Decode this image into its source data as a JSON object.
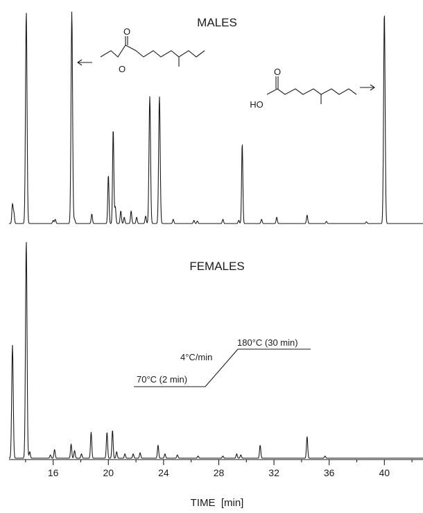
{
  "chart_data": [
    {
      "type": "line",
      "title": "MALES",
      "xlabel": "TIME  [min]",
      "x_unit": "min",
      "xlim": [
        12.8,
        42.8
      ],
      "baseline_y": 0,
      "y_unit": "relative detector response",
      "peaks": [
        {
          "t": 13.05,
          "h": 0.09
        },
        {
          "t": 13.15,
          "h": 0.05
        },
        {
          "t": 14.05,
          "h": 1.0
        },
        {
          "t": 16.0,
          "h": 0.015
        },
        {
          "t": 16.15,
          "h": 0.02
        },
        {
          "t": 17.35,
          "h": 1.0
        },
        {
          "t": 17.55,
          "h": 0.02
        },
        {
          "t": 18.8,
          "h": 0.045
        },
        {
          "t": 20.0,
          "h": 0.23
        },
        {
          "t": 20.35,
          "h": 0.45
        },
        {
          "t": 20.5,
          "h": 0.08
        },
        {
          "t": 20.9,
          "h": 0.06
        },
        {
          "t": 21.15,
          "h": 0.03
        },
        {
          "t": 21.65,
          "h": 0.06
        },
        {
          "t": 22.05,
          "h": 0.03
        },
        {
          "t": 22.7,
          "h": 0.035
        },
        {
          "t": 23.0,
          "h": 0.6
        },
        {
          "t": 23.7,
          "h": 0.6
        },
        {
          "t": 24.7,
          "h": 0.02
        },
        {
          "t": 26.2,
          "h": 0.015
        },
        {
          "t": 26.45,
          "h": 0.012
        },
        {
          "t": 28.3,
          "h": 0.02
        },
        {
          "t": 29.45,
          "h": 0.015
        },
        {
          "t": 29.7,
          "h": 0.38
        },
        {
          "t": 31.1,
          "h": 0.02
        },
        {
          "t": 32.2,
          "h": 0.03
        },
        {
          "t": 34.4,
          "h": 0.04
        },
        {
          "t": 35.8,
          "h": 0.01
        },
        {
          "t": 38.7,
          "h": 0.008
        },
        {
          "t": 40.0,
          "h": 1.0
        }
      ],
      "annotations": [
        {
          "text": "←",
          "meaning": "ethyl ester structure drawn with an arrow toward the peak at about 17.4 min"
        },
        {
          "text": "→",
          "meaning": "acid structure drawn with an arrow toward the peak at about 40.0 min"
        }
      ]
    },
    {
      "type": "line",
      "title": "FEMALES",
      "xlabel": "TIME  [min]",
      "x_unit": "min",
      "xlim": [
        12.8,
        42.8
      ],
      "baseline_y": 0,
      "y_unit": "relative detector response",
      "peaks": [
        {
          "t": 13.05,
          "h": 0.52
        },
        {
          "t": 14.05,
          "h": 1.0
        },
        {
          "t": 14.3,
          "h": 0.03
        },
        {
          "t": 15.8,
          "h": 0.015
        },
        {
          "t": 16.1,
          "h": 0.04
        },
        {
          "t": 17.3,
          "h": 0.065
        },
        {
          "t": 17.55,
          "h": 0.035
        },
        {
          "t": 18.05,
          "h": 0.02
        },
        {
          "t": 18.75,
          "h": 0.12
        },
        {
          "t": 19.9,
          "h": 0.12
        },
        {
          "t": 20.3,
          "h": 0.13
        },
        {
          "t": 20.6,
          "h": 0.03
        },
        {
          "t": 21.2,
          "h": 0.02
        },
        {
          "t": 21.8,
          "h": 0.02
        },
        {
          "t": 22.3,
          "h": 0.025
        },
        {
          "t": 23.6,
          "h": 0.06
        },
        {
          "t": 24.1,
          "h": 0.02
        },
        {
          "t": 25.0,
          "h": 0.015
        },
        {
          "t": 26.5,
          "h": 0.01
        },
        {
          "t": 28.3,
          "h": 0.01
        },
        {
          "t": 29.3,
          "h": 0.02
        },
        {
          "t": 29.6,
          "h": 0.015
        },
        {
          "t": 31.0,
          "h": 0.06
        },
        {
          "t": 34.4,
          "h": 0.1
        },
        {
          "t": 35.7,
          "h": 0.01
        }
      ],
      "temperature_program": {
        "labels": [
          "70°C (2 min)",
          "4°C/min",
          "180°C (30 min)"
        ]
      }
    }
  ],
  "axis": {
    "ticks": [
      "16",
      "20",
      "24",
      "28",
      "32",
      "36",
      "40"
    ],
    "tick_values": [
      16,
      20,
      24,
      28,
      32,
      36,
      40
    ],
    "minor_tick_values": [
      14,
      18,
      22,
      26,
      30,
      34,
      38,
      42
    ],
    "label": "TIME  [min]"
  },
  "structures": {
    "ester_label": "O",
    "ester_ring_o": "O",
    "acid_carbonyl_o": "O",
    "acid_oh": "HO"
  }
}
